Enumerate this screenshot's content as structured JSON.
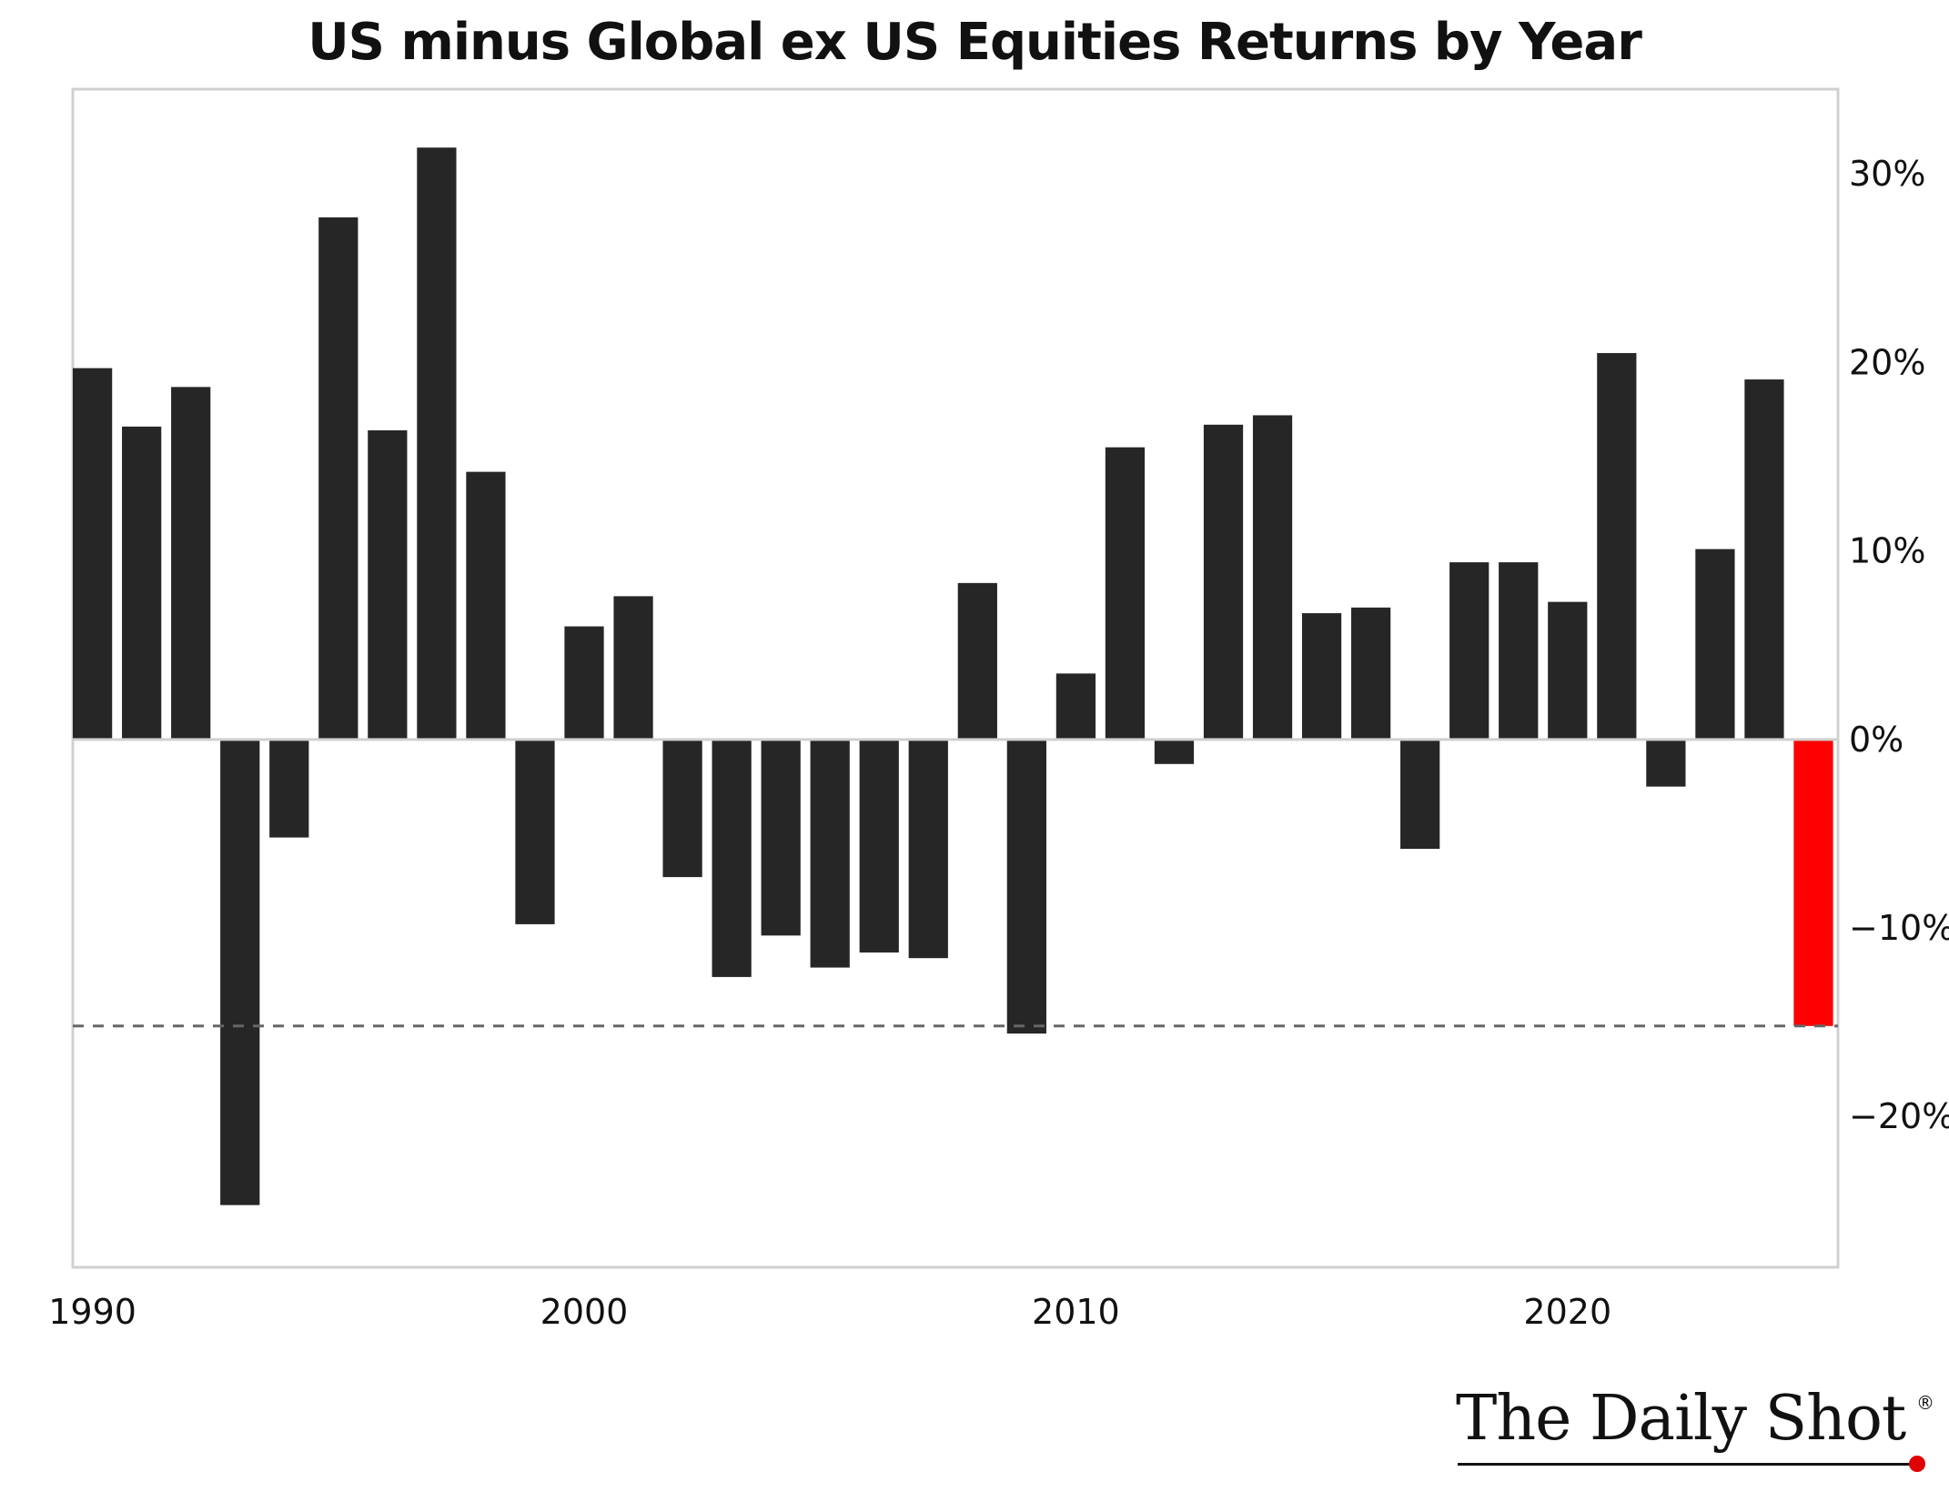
{
  "chart_data": {
    "type": "bar",
    "title": "US minus Global ex US Equities Returns by Year",
    "x": [
      1990,
      1991,
      1992,
      1993,
      1994,
      1995,
      1996,
      1997,
      1998,
      1999,
      2000,
      2001,
      2002,
      2003,
      2004,
      2005,
      2006,
      2007,
      2008,
      2009,
      2010,
      2011,
      2012,
      2013,
      2014,
      2015,
      2016,
      2017,
      2018,
      2019,
      2020,
      2021,
      2022,
      2023,
      2024
    ],
    "values": [
      19.7,
      16.6,
      18.7,
      -24.7,
      -5.2,
      27.7,
      16.4,
      31.4,
      14.2,
      -9.8,
      6.0,
      7.6,
      -7.3,
      -12.6,
      -10.4,
      -12.1,
      -11.3,
      -11.6,
      8.3,
      -15.6,
      3.5,
      15.5,
      -1.3,
      16.7,
      17.2,
      6.7,
      7.0,
      -5.8,
      9.4,
      9.4,
      7.3,
      20.5,
      -2.5,
      10.1,
      19.1
    ],
    "highlight": {
      "year": 2025,
      "value": -15.2,
      "color": "#ff0000"
    },
    "bar_color": "#262626",
    "reference_line": {
      "value": -15.2,
      "style": "dashed",
      "color": "#666666"
    },
    "xticks": [
      "1990",
      "2000",
      "2010",
      "2020"
    ],
    "yticks": [
      "30%",
      "20%",
      "10%",
      "0%",
      "−10%",
      "−20%"
    ],
    "ytick_values": [
      30,
      20,
      10,
      0,
      -10,
      -20
    ],
    "ylim": [
      -28,
      34.5
    ],
    "xlim": [
      1989.6,
      2025.5
    ],
    "y_axis_side": "right",
    "grid": false,
    "xlabel": "",
    "ylabel": ""
  },
  "brand": {
    "text": "The Daily Shot",
    "reg": "®"
  }
}
